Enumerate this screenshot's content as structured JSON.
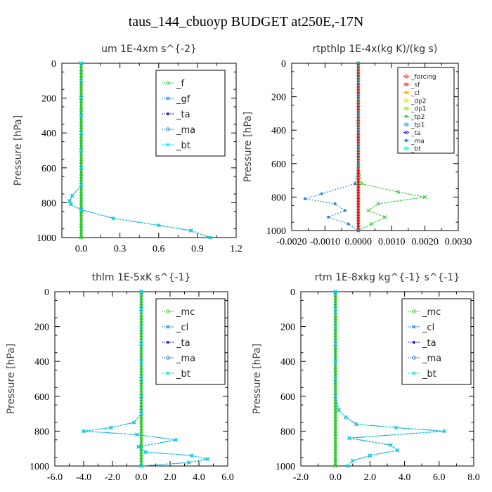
{
  "page_title": "taus_144_cbuoyp  BUDGET at250E,-17N",
  "colors": {
    "green": "#33cc33",
    "blue": "#1e7fd8",
    "red": "#dd2222",
    "navy": "#2222bb",
    "cyan": "#00dddd",
    "orange": "#ffaa00",
    "yellow": "#dddd00",
    "brown": "#aa6622",
    "lime": "#88dd00"
  },
  "chart_data": [
    {
      "type": "line",
      "title": "um   1E-4xm s^{-2}",
      "ylabel": "Pressure  [hPa]",
      "xlim": [
        -0.15,
        1.2
      ],
      "ylim": [
        1000,
        0
      ],
      "xticks": [
        "0.0",
        "0.3",
        "0.6",
        "0.9",
        "1.2"
      ],
      "xtick_values": [
        0,
        0.3,
        0.6,
        0.9,
        1.2
      ],
      "yticks": [
        "0",
        "200",
        "400",
        "600",
        "800",
        "1000"
      ],
      "ytick_values": [
        0,
        200,
        400,
        600,
        800,
        1000
      ],
      "legend": [
        "_f",
        "_gf",
        "_ta",
        "_ma",
        "_bt"
      ],
      "legend_colors": [
        "#33cc33",
        "#1e7fd8",
        "#2222bb",
        "#1e7fd8",
        "#00dddd"
      ],
      "series": [
        {
          "name": "_f",
          "color": "#33cc33",
          "x": [
            0,
            0,
            0,
            0,
            0,
            0,
            0,
            0,
            0,
            0,
            0
          ],
          "y": [
            0,
            100,
            200,
            300,
            400,
            500,
            600,
            700,
            800,
            900,
            1000
          ]
        },
        {
          "name": "_gf",
          "color": "#1e7fd8",
          "x": [
            0,
            0,
            0,
            0,
            0,
            0,
            0,
            0,
            -0.07,
            -0.09,
            -0.08,
            0,
            0.25,
            0.6,
            0.85,
            1.0
          ],
          "y": [
            0,
            100,
            200,
            300,
            400,
            500,
            600,
            700,
            760,
            790,
            810,
            840,
            890,
            930,
            960,
            1000
          ]
        },
        {
          "name": "_bt",
          "color": "#00dddd",
          "x": [
            0,
            0,
            0,
            0,
            0,
            0,
            0,
            0,
            -0.07,
            -0.09,
            -0.08,
            0,
            0.25,
            0.6,
            0.85,
            1.0
          ],
          "y": [
            0,
            100,
            200,
            300,
            400,
            500,
            600,
            700,
            760,
            790,
            810,
            840,
            890,
            930,
            960,
            1000
          ]
        }
      ]
    },
    {
      "type": "line",
      "title": "rtpthlp   1E-4x(kg K)/(kg s)",
      "ylabel": "Pressure  [hPa]",
      "xlim": [
        -0.002,
        0.003
      ],
      "ylim": [
        1000,
        0
      ],
      "xticks": [
        "-0.0020",
        "-0.0010",
        "0.0000",
        "0.0010",
        "0.0020",
        "0.0030"
      ],
      "xtick_values": [
        -0.002,
        -0.001,
        0,
        0.001,
        0.002,
        0.003
      ],
      "yticks": [
        "0",
        "200",
        "400",
        "600",
        "800",
        "1000"
      ],
      "ytick_values": [
        0,
        200,
        400,
        600,
        800,
        1000
      ],
      "legend": [
        "_forcing",
        "_sf",
        "_cl",
        "_dp2",
        "_dp1",
        "_tp2",
        "_tp1",
        "_ta",
        "_ma",
        "_bt"
      ],
      "legend_colors": [
        "#dd2222",
        "#dd2222",
        "#ffaa00",
        "#dddd00",
        "#88dd00",
        "#33cc33",
        "#1e7fd8",
        "#2222bb",
        "#1e7fd8",
        "#00dddd"
      ],
      "series": [
        {
          "name": "_forcing",
          "color": "#dd2222",
          "x": [
            0,
            0,
            0,
            0,
            0,
            0,
            0,
            0,
            0,
            0,
            0
          ],
          "y": [
            0,
            100,
            200,
            300,
            400,
            500,
            600,
            700,
            800,
            900,
            1000
          ]
        },
        {
          "name": "_tp2",
          "color": "#33cc33",
          "x": [
            0,
            0,
            0,
            0,
            0,
            0,
            0,
            0.0001,
            0.0012,
            0.002,
            0.0006,
            0.0003,
            0.0008,
            0.0004,
            0
          ],
          "y": [
            0,
            100,
            200,
            300,
            400,
            500,
            600,
            720,
            770,
            800,
            840,
            880,
            920,
            960,
            1000
          ]
        },
        {
          "name": "_tp1",
          "color": "#1e7fd8",
          "x": [
            0,
            0,
            0,
            0,
            0,
            0,
            0,
            -0.0001,
            -0.0011,
            -0.0016,
            -0.0007,
            -0.0004,
            -0.0009,
            -0.0003,
            0
          ],
          "y": [
            0,
            100,
            200,
            300,
            400,
            500,
            600,
            720,
            780,
            810,
            840,
            880,
            920,
            960,
            1000
          ]
        }
      ]
    },
    {
      "type": "line",
      "title": "thlm   1E-5xK  s^{-1}",
      "ylabel": "Pressure  [hPa]",
      "xlim": [
        -6,
        6
      ],
      "ylim": [
        1000,
        0
      ],
      "xticks": [
        "-6.0",
        "-4.0",
        "-2.0",
        "0.0",
        "2.0",
        "4.0",
        "6.0"
      ],
      "xtick_values": [
        -6,
        -4,
        -2,
        0,
        2,
        4,
        6
      ],
      "yticks": [
        "0",
        "200",
        "400",
        "600",
        "800",
        "1000"
      ],
      "ytick_values": [
        0,
        200,
        400,
        600,
        800,
        1000
      ],
      "legend": [
        "_mc",
        "_cl",
        "_ta",
        "_ma",
        "_bt"
      ],
      "legend_colors": [
        "#33cc33",
        "#1e7fd8",
        "#2222bb",
        "#1e7fd8",
        "#00dddd"
      ],
      "series": [
        {
          "name": "_mc",
          "color": "#33cc33",
          "x": [
            0,
            0,
            0,
            0,
            0,
            0,
            0,
            0,
            0,
            0,
            0
          ],
          "y": [
            0,
            100,
            200,
            300,
            400,
            500,
            600,
            700,
            800,
            900,
            1000
          ]
        },
        {
          "name": "_cl",
          "color": "#1e7fd8",
          "x": [
            0,
            0,
            0,
            0,
            0,
            0,
            0,
            0,
            -0.5,
            -2.1,
            -4.0,
            -0.3,
            2.4,
            -0.2,
            0.3,
            3.5,
            4.6,
            3.3,
            0
          ],
          "y": [
            0,
            100,
            200,
            300,
            400,
            500,
            600,
            700,
            750,
            780,
            800,
            820,
            850,
            890,
            920,
            940,
            960,
            980,
            1000
          ]
        },
        {
          "name": "_bt",
          "color": "#00dddd",
          "x": [
            0,
            0,
            0,
            0,
            0,
            0,
            0,
            0,
            -0.5,
            -2.1,
            -4.0,
            -0.3,
            2.4,
            -0.2,
            0.3,
            3.5,
            4.6,
            3.3,
            0
          ],
          "y": [
            0,
            100,
            200,
            300,
            400,
            500,
            600,
            700,
            750,
            780,
            800,
            820,
            850,
            890,
            920,
            940,
            960,
            980,
            1000
          ]
        }
      ]
    },
    {
      "type": "line",
      "title": "rtm   1E-8xkg  kg^{-1}  s^{-1}",
      "ylabel": "Pressure  [hPa]",
      "xlim": [
        -2,
        8
      ],
      "ylim": [
        1000,
        0
      ],
      "xticks": [
        "-2.0",
        "0.0",
        "2.0",
        "4.0",
        "6.0",
        "8.0"
      ],
      "xtick_values": [
        -2,
        0,
        2,
        4,
        6,
        8
      ],
      "yticks": [
        "0",
        "200",
        "400",
        "600",
        "800",
        "1000"
      ],
      "ytick_values": [
        0,
        200,
        400,
        600,
        800,
        1000
      ],
      "legend": [
        "_mc",
        "_cl",
        "_ta",
        "_ma",
        "_bt"
      ],
      "legend_colors": [
        "#33cc33",
        "#1e7fd8",
        "#2222bb",
        "#1e7fd8",
        "#00dddd"
      ],
      "series": [
        {
          "name": "_mc",
          "color": "#33cc33",
          "x": [
            0,
            0,
            0,
            0,
            0,
            0,
            0,
            0,
            0,
            0,
            0
          ],
          "y": [
            0,
            100,
            200,
            300,
            400,
            500,
            600,
            700,
            800,
            900,
            1000
          ]
        },
        {
          "name": "_cl",
          "color": "#1e7fd8",
          "x": [
            0,
            0,
            0,
            0,
            0,
            0,
            0,
            0.2,
            0.6,
            1.2,
            3.5,
            6.3,
            0.8,
            3.2,
            3.6,
            2.0,
            1.0,
            0.7
          ],
          "y": [
            0,
            100,
            200,
            300,
            400,
            500,
            600,
            680,
            720,
            760,
            780,
            800,
            840,
            880,
            910,
            940,
            970,
            1000
          ]
        },
        {
          "name": "_bt",
          "color": "#00dddd",
          "x": [
            0,
            0,
            0,
            0,
            0,
            0,
            0,
            0.2,
            0.6,
            1.2,
            3.5,
            6.3,
            0.8,
            3.2,
            3.6,
            2.0,
            1.0,
            0.7
          ],
          "y": [
            0,
            100,
            200,
            300,
            400,
            500,
            600,
            680,
            720,
            760,
            780,
            800,
            840,
            880,
            910,
            940,
            970,
            1000
          ]
        }
      ]
    }
  ]
}
